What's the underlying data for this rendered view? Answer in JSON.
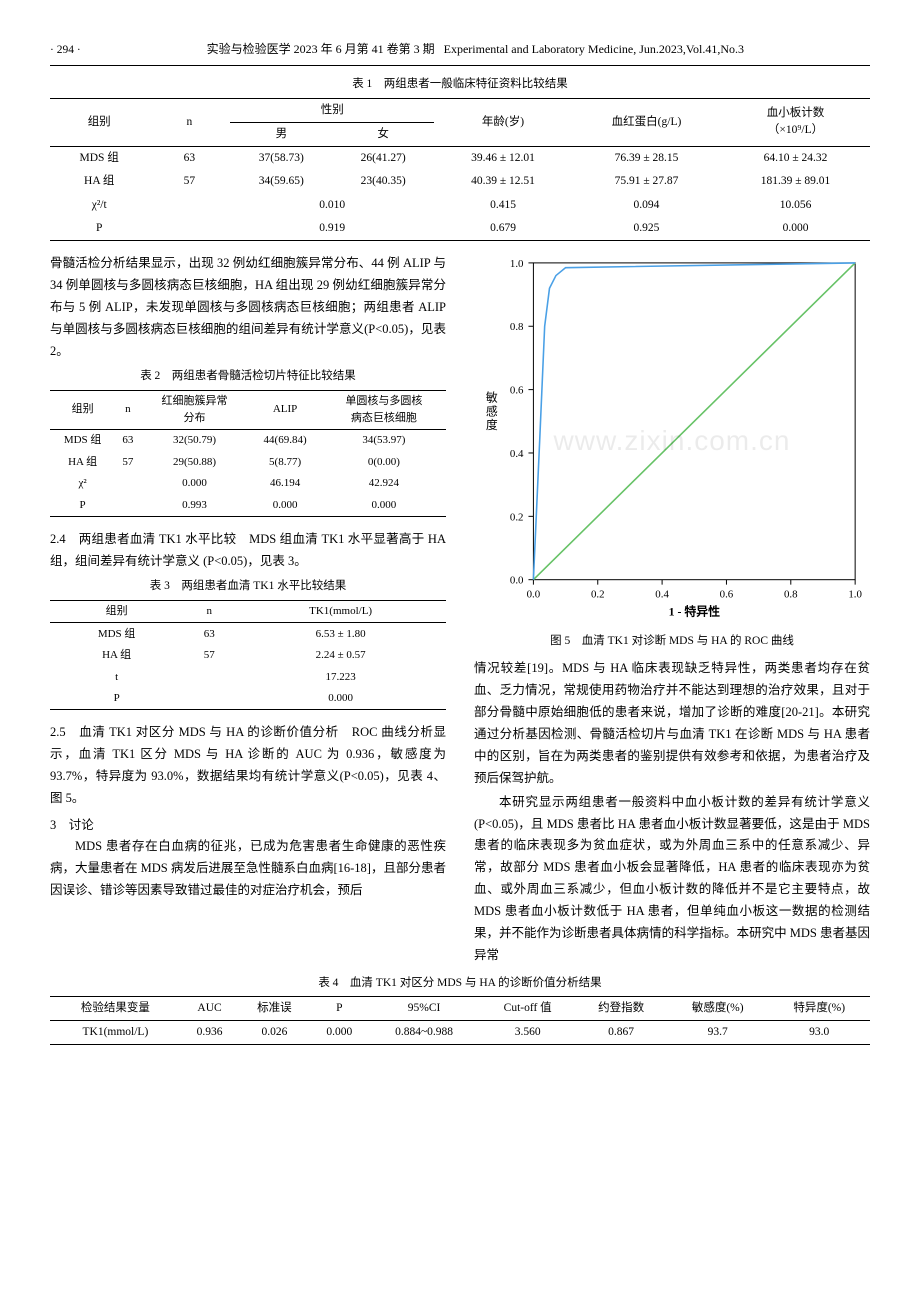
{
  "header": {
    "page_num": "· 294 ·",
    "journal_cn": "实验与检验医学 2023 年 6 月第 41 卷第 3 期",
    "journal_en": "Experimental and Laboratory Medicine, Jun.2023,Vol.41,No.3"
  },
  "table1": {
    "caption": "表 1　两组患者一般临床特征资料比较结果",
    "header_row1": [
      "组别",
      "n",
      "性别",
      "年龄(岁)",
      "血红蛋白(g/L)",
      "血小板计数"
    ],
    "header_row2": [
      "男",
      "女",
      "（×10⁹/L）"
    ],
    "rows": [
      [
        "MDS 组",
        "63",
        "37(58.73)",
        "26(41.27)",
        "39.46 ± 12.01",
        "76.39 ± 28.15",
        "64.10 ± 24.32"
      ],
      [
        "HA 组",
        "57",
        "34(59.65)",
        "23(40.35)",
        "40.39 ± 12.51",
        "75.91 ± 27.87",
        "181.39 ± 89.01"
      ],
      [
        "χ²/t",
        "",
        "0.010",
        "",
        "0.415",
        "0.094",
        "10.056"
      ],
      [
        "P",
        "",
        "0.919",
        "",
        "0.679",
        "0.925",
        "0.000"
      ]
    ]
  },
  "left": {
    "para1": "骨髓活检分析结果显示，出现 32 例幼红细胞簇异常分布、44 例 ALIP 与 34 例单圆核与多圆核病态巨核细胞，HA 组出现 29 例幼红细胞簇异常分布与 5 例 ALIP，未发现单圆核与多圆核病态巨核细胞；两组患者 ALIP 与单圆核与多圆核病态巨核细胞的组间差异有统计学意义(P<0.05)，见表 2。",
    "table2": {
      "caption": "表 2　两组患者骨髓活检切片特征比较结果",
      "header1": [
        "组别",
        "n",
        "红细胞簇异常",
        "ALIP",
        "单圆核与多圆核"
      ],
      "header2": [
        "分布",
        "病态巨核细胞"
      ],
      "rows": [
        [
          "MDS 组",
          "63",
          "32(50.79)",
          "44(69.84)",
          "34(53.97)"
        ],
        [
          "HA 组",
          "57",
          "29(50.88)",
          "5(8.77)",
          "0(0.00)"
        ],
        [
          "χ²",
          "",
          "0.000",
          "46.194",
          "42.924"
        ],
        [
          "P",
          "",
          "0.993",
          "0.000",
          "0.000"
        ]
      ]
    },
    "sec24": "2.4　两组患者血清 TK1 水平比较　MDS 组血清 TK1 水平显著高于 HA 组，组间差异有统计学意义 (P<0.05)，见表 3。",
    "table3": {
      "caption": "表 3　两组患者血清 TK1 水平比较结果",
      "header": [
        "组别",
        "n",
        "TK1(mmol/L)"
      ],
      "rows": [
        [
          "MDS 组",
          "63",
          "6.53 ± 1.80"
        ],
        [
          "HA 组",
          "57",
          "2.24 ± 0.57"
        ],
        [
          "t",
          "",
          "17.223"
        ],
        [
          "P",
          "",
          "0.000"
        ]
      ]
    },
    "sec25": "2.5　血清 TK1 对区分 MDS 与 HA 的诊断价值分析　ROC 曲线分析显示，血清 TK1 区分 MDS 与 HA 诊断的 AUC 为 0.936，敏感度为 93.7%，特异度为 93.0%，数据结果均有统计学意义(P<0.05)，见表 4、图 5。",
    "sec3_head": "3　讨论",
    "sec3_para": "MDS 患者存在白血病的征兆，已成为危害患者生命健康的恶性疾病，大量患者在 MDS 病发后进展至急性髓系白血病[16-18]，且部分患者因误诊、错诊等因素导致错过最佳的对症治疗机会，预后"
  },
  "right": {
    "chart": {
      "type": "roc",
      "xlim": [
        0,
        1
      ],
      "ylim": [
        0,
        1
      ],
      "xticks": [
        "0.0",
        "0.2",
        "0.4",
        "0.6",
        "0.8",
        "1.0"
      ],
      "yticks": [
        "0.0",
        "0.2",
        "0.4",
        "0.6",
        "0.8",
        "1.0"
      ],
      "xlabel": "1 - 特异性",
      "ylabel": "敏感度",
      "roc_color": "#4aa0e6",
      "diag_color": "#66c266",
      "line_width": 1.6,
      "background_color": "#ffffff",
      "axis_color": "#000000",
      "roc_points": [
        [
          0,
          0
        ],
        [
          0.02,
          0.45
        ],
        [
          0.035,
          0.8
        ],
        [
          0.05,
          0.92
        ],
        [
          0.07,
          0.96
        ],
        [
          0.1,
          0.985
        ],
        [
          1,
          1
        ]
      ],
      "diag_points": [
        [
          0,
          0
        ],
        [
          1,
          1
        ]
      ]
    },
    "fig_caption": "图 5　血清 TK1 对诊断 MDS 与 HA 的 ROC 曲线",
    "para1": "情况较差[19]。MDS 与 HA 临床表现缺乏特异性，两类患者均存在贫血、乏力情况，常规使用药物治疗并不能达到理想的治疗效果，且对于部分骨髓中原始细胞低的患者来说，增加了诊断的难度[20-21]。本研究通过分析基因检测、骨髓活检切片与血清 TK1 在诊断 MDS 与 HA 患者中的区别，旨在为两类患者的鉴别提供有效参考和依据，为患者治疗及预后保驾护航。",
    "para2": "本研究显示两组患者一般资料中血小板计数的差异有统计学意义(P<0.05)，且 MDS 患者比 HA 患者血小板计数显著要低，这是由于 MDS 患者的临床表现多为贫血症状，或为外周血三系中的任意系减少、异常，故部分 MDS 患者血小板会显著降低，HA 患者的临床表现亦为贫血、或外周血三系减少，但血小板计数的降低并不是它主要特点，故 MDS 患者血小板计数低于 HA 患者，但单纯血小板这一数据的检测结果，并不能作为诊断患者具体病情的科学指标。本研究中 MDS 患者基因异常"
  },
  "table4": {
    "caption": "表 4　血清 TK1 对区分 MDS 与 HA 的诊断价值分析结果",
    "header": [
      "检验结果变量",
      "AUC",
      "标准误",
      "P",
      "95%CI",
      "Cut-off 值",
      "约登指数",
      "敏感度(%)",
      "特异度(%)"
    ],
    "row": [
      "TK1(mmol/L)",
      "0.936",
      "0.026",
      "0.000",
      "0.884~0.988",
      "3.560",
      "0.867",
      "93.7",
      "93.0"
    ]
  },
  "watermark": "www.zixin.com.cn"
}
